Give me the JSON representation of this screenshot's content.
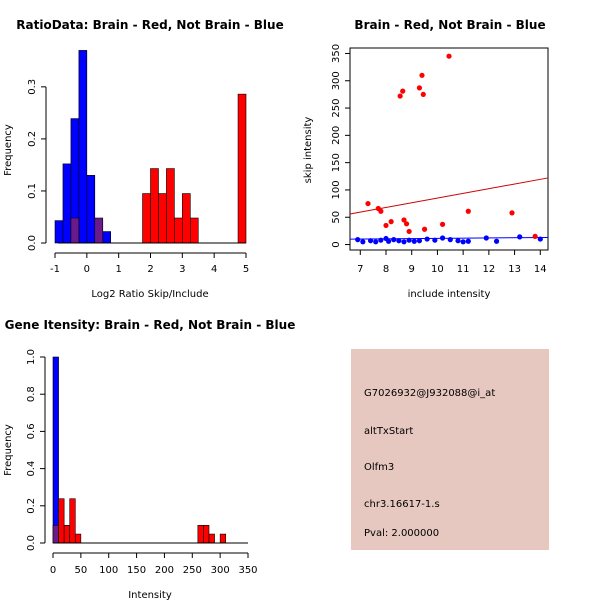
{
  "colors": {
    "red": "#ff0000",
    "blue": "#0000ff",
    "overlap": "#6b1a8c",
    "line": "#cc0000",
    "panel_bg": "#e6c8c0",
    "pval": "#b00000"
  },
  "chart_data": [
    {
      "type": "bar",
      "title": "RatioData: Brain - Red, Not Brain - Blue",
      "xlabel": "Log2 Ratio Skip/Include",
      "ylabel": "Frequency",
      "xlim": [
        -1,
        5
      ],
      "ylim": [
        0,
        0.39
      ],
      "bin_width": 0.25,
      "x_ticks": [
        "-1",
        "0",
        "1",
        "2",
        "3",
        "4",
        "5"
      ],
      "y_ticks": [
        "0.0",
        "0.1",
        "0.2",
        "0.3"
      ],
      "series": [
        {
          "name": "Not Brain",
          "color": "blue",
          "bins": [
            [
              -1.0,
              0.043
            ],
            [
              -0.75,
              0.152
            ],
            [
              -0.5,
              0.239
            ],
            [
              -0.25,
              0.37
            ],
            [
              0.0,
              0.13
            ],
            [
              0.25,
              0.043
            ],
            [
              0.5,
              0.022
            ]
          ]
        },
        {
          "name": "Brain",
          "color": "red",
          "bins": [
            [
              -0.5,
              0.048
            ],
            [
              0.25,
              0.048
            ],
            [
              1.75,
              0.095
            ],
            [
              2.0,
              0.143
            ],
            [
              2.25,
              0.095
            ],
            [
              2.5,
              0.143
            ],
            [
              2.75,
              0.048
            ],
            [
              3.0,
              0.095
            ],
            [
              3.25,
              0.048
            ],
            [
              4.75,
              0.286
            ]
          ]
        }
      ]
    },
    {
      "type": "scatter",
      "title": "Brain - Red, Not Brain - Blue",
      "xlabel": "include intensity",
      "ylabel": "skip intensity",
      "xlim": [
        6.6,
        14.3
      ],
      "ylim": [
        -10,
        360
      ],
      "x_ticks": [
        "7",
        "8",
        "9",
        "10",
        "11",
        "12",
        "13",
        "14"
      ],
      "y_ticks": [
        "0",
        "50",
        "100",
        "150",
        "200",
        "250",
        "300",
        "350"
      ],
      "series": [
        {
          "name": "Brain",
          "color": "red",
          "points": [
            [
              7.3,
              75
            ],
            [
              7.7,
              66
            ],
            [
              7.8,
              61
            ],
            [
              8.0,
              35
            ],
            [
              8.2,
              42
            ],
            [
              8.55,
              272
            ],
            [
              8.65,
              281
            ],
            [
              8.7,
              45
            ],
            [
              8.8,
              38
            ],
            [
              8.9,
              24
            ],
            [
              9.3,
              287
            ],
            [
              9.4,
              310
            ],
            [
              9.45,
              275
            ],
            [
              9.5,
              28
            ],
            [
              10.2,
              37
            ],
            [
              10.45,
              345
            ],
            [
              11.2,
              61
            ],
            [
              12.9,
              58
            ],
            [
              13.8,
              15
            ]
          ]
        },
        {
          "name": "Not Brain",
          "color": "blue",
          "points": [
            [
              6.9,
              9
            ],
            [
              7.1,
              5
            ],
            [
              7.4,
              7
            ],
            [
              7.6,
              5
            ],
            [
              7.8,
              8
            ],
            [
              8.0,
              11
            ],
            [
              8.1,
              6
            ],
            [
              8.3,
              9
            ],
            [
              8.5,
              7
            ],
            [
              8.7,
              5
            ],
            [
              8.9,
              8
            ],
            [
              9.1,
              6
            ],
            [
              9.3,
              7
            ],
            [
              9.6,
              10
            ],
            [
              9.9,
              8
            ],
            [
              10.2,
              12
            ],
            [
              10.5,
              9
            ],
            [
              10.8,
              7
            ],
            [
              11.0,
              5
            ],
            [
              11.2,
              6
            ],
            [
              11.9,
              12
            ],
            [
              12.3,
              6
            ],
            [
              13.2,
              14
            ],
            [
              14.0,
              10
            ]
          ]
        }
      ],
      "trend_lines": [
        {
          "color": "line",
          "from": [
            6.6,
            56
          ],
          "to": [
            14.3,
            122
          ]
        },
        {
          "color": "blue",
          "from": [
            6.6,
            10
          ],
          "to": [
            14.3,
            13
          ]
        }
      ]
    },
    {
      "type": "bar",
      "title": "Gene Itensity: Brain - Red, Not Brain - Blue",
      "xlabel": "Intensity",
      "ylabel": "Frequency",
      "xlim": [
        0,
        350
      ],
      "ylim": [
        0,
        1.0
      ],
      "bin_width": 10,
      "x_ticks": [
        "0",
        "50",
        "100",
        "150",
        "200",
        "250",
        "300",
        "350"
      ],
      "y_ticks": [
        "0.0",
        "0.2",
        "0.4",
        "0.6",
        "0.8",
        "1.0"
      ],
      "series": [
        {
          "name": "Not Brain",
          "color": "blue",
          "bins": [
            [
              0,
              1.0
            ]
          ]
        },
        {
          "name": "Brain",
          "color": "red",
          "bins": [
            [
              0,
              0.095
            ],
            [
              10,
              0.238
            ],
            [
              20,
              0.095
            ],
            [
              30,
              0.238
            ],
            [
              40,
              0.048
            ],
            [
              260,
              0.095
            ],
            [
              270,
              0.095
            ],
            [
              280,
              0.048
            ],
            [
              300,
              0.048
            ]
          ]
        }
      ]
    }
  ],
  "info_panel": {
    "probe": "G7026932@J932088@i_at",
    "event": "altTxStart",
    "gene": "Olfm3",
    "location": "chr3.16617-1.s",
    "pval": "Pval: 2.000000"
  }
}
